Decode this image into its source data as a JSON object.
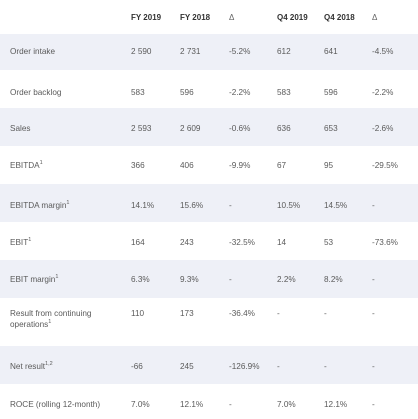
{
  "header": {
    "c0": "",
    "c1": "FY 2019",
    "c2": "FY 2018",
    "c3": "Δ",
    "c4": "Q4 2019",
    "c5": "Q4 2018",
    "c6": "Δ"
  },
  "rows": [
    {
      "label": "Order intake",
      "sup": "",
      "fy2019": "2 590",
      "fy2018": "2 731",
      "fy_delta": "-5.2%",
      "q42019": "612",
      "q42018": "641",
      "q4_delta": "-4.5%"
    },
    {
      "label": "Order backlog",
      "sup": "",
      "fy2019": "583",
      "fy2018": "596",
      "fy_delta": "-2.2%",
      "q42019": "583",
      "q42018": "596",
      "q4_delta": "-2.2%"
    },
    {
      "label": "Sales",
      "sup": "",
      "fy2019": "2 593",
      "fy2018": "2 609",
      "fy_delta": "-0.6%",
      "q42019": "636",
      "q42018": "653",
      "q4_delta": "-2.6%"
    },
    {
      "label": "EBITDA",
      "sup": "1",
      "fy2019": "366",
      "fy2018": "406",
      "fy_delta": "-9.9%",
      "q42019": "67",
      "q42018": "95",
      "q4_delta": "-29.5%"
    },
    {
      "label": "EBITDA margin",
      "sup": "1",
      "fy2019": "14.1%",
      "fy2018": "15.6%",
      "fy_delta": "-",
      "q42019": "10.5%",
      "q42018": "14.5%",
      "q4_delta": "-"
    },
    {
      "label": "EBIT",
      "sup": "1",
      "fy2019": "164",
      "fy2018": "243",
      "fy_delta": "-32.5%",
      "q42019": "14",
      "q42018": "53",
      "q4_delta": "-73.6%"
    },
    {
      "label": "EBIT margin",
      "sup": "1",
      "fy2019": "6.3%",
      "fy2018": "9.3%",
      "fy_delta": "-",
      "q42019": "2.2%",
      "q42018": "8.2%",
      "q4_delta": "-"
    },
    {
      "label": "Result from continuing operations",
      "sup": "1",
      "fy2019": "110",
      "fy2018": "173",
      "fy_delta": "-36.4%",
      "q42019": "-",
      "q42018": "-",
      "q4_delta": "-"
    },
    {
      "label": "Net result",
      "sup": "1,2",
      "fy2019": "-66",
      "fy2018": "245",
      "fy_delta": "-126.9%",
      "q42019": "-",
      "q42018": "-",
      "q4_delta": "-"
    },
    {
      "label": "ROCE (rolling 12-month)",
      "sup": "",
      "fy2019": "7.0%",
      "fy2018": "12.1%",
      "fy_delta": "-",
      "q42019": "7.0%",
      "q42018": "12.1%",
      "q4_delta": "-"
    }
  ]
}
